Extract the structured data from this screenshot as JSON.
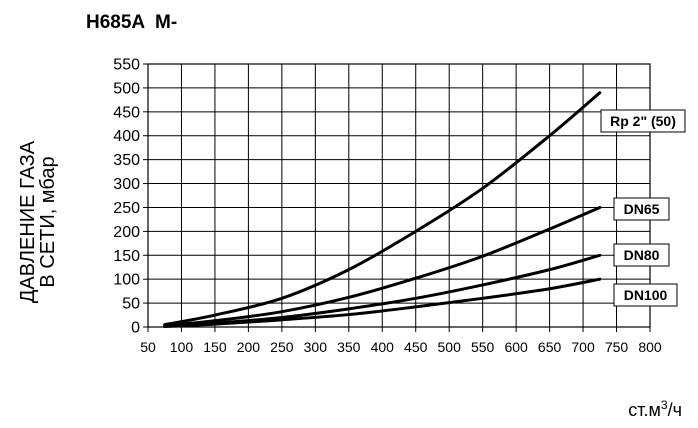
{
  "chart_data": {
    "type": "line",
    "title": "H685A  M-",
    "ylabel_line1": "ДАВЛЕНИЕ ГАЗА",
    "ylabel_line2": "В СЕТИ, мбар",
    "xlabel_main": "ст.м",
    "xlabel_sup": "3",
    "xlabel_tail": "/ч",
    "xlim": [
      50,
      800
    ],
    "ylim": [
      0,
      550
    ],
    "x_ticks": [
      50,
      100,
      150,
      200,
      250,
      300,
      350,
      400,
      450,
      500,
      550,
      600,
      650,
      700,
      750,
      800
    ],
    "y_ticks": [
      0,
      50,
      100,
      150,
      200,
      250,
      300,
      350,
      400,
      450,
      500,
      550
    ],
    "grid": true,
    "series": [
      {
        "name": "Rp 2\" (50)",
        "x": [
          75,
          150,
          250,
          350,
          450,
          550,
          650,
          725
        ],
        "y": [
          5,
          25,
          60,
          120,
          200,
          290,
          400,
          490
        ]
      },
      {
        "name": "DN65",
        "x": [
          75,
          150,
          250,
          350,
          450,
          550,
          650,
          725
        ],
        "y": [
          3,
          13,
          32,
          62,
          102,
          148,
          205,
          250
        ]
      },
      {
        "name": "DN80",
        "x": [
          75,
          150,
          250,
          350,
          450,
          550,
          650,
          725
        ],
        "y": [
          2,
          8,
          20,
          38,
          60,
          88,
          120,
          150
        ]
      },
      {
        "name": "DN100",
        "x": [
          75,
          150,
          250,
          350,
          450,
          550,
          650,
          725
        ],
        "y": [
          1,
          6,
          15,
          26,
          42,
          60,
          80,
          100
        ]
      }
    ]
  }
}
